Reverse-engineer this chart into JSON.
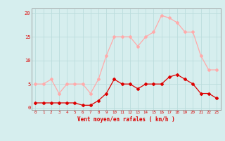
{
  "x": [
    0,
    1,
    2,
    3,
    4,
    5,
    6,
    7,
    8,
    9,
    10,
    11,
    12,
    13,
    14,
    15,
    16,
    17,
    18,
    19,
    20,
    21,
    22,
    23
  ],
  "wind_avg": [
    1,
    1,
    1,
    1,
    1,
    1,
    0.5,
    0.5,
    1.5,
    3,
    6,
    5,
    5,
    4,
    5,
    5,
    5,
    6.5,
    7,
    6,
    5,
    3,
    3,
    2
  ],
  "wind_gust": [
    5,
    5,
    6,
    3,
    5,
    5,
    5,
    3,
    6,
    11,
    15,
    15,
    15,
    13,
    15,
    16,
    19.5,
    19,
    18,
    16,
    16,
    11,
    8,
    8
  ],
  "avg_color": "#dd0000",
  "gust_color": "#ffaaaa",
  "bg_color": "#d6eeee",
  "grid_color": "#bbdddd",
  "xlabel": "Vent moyen/en rafales ( km/h )",
  "ylabel_ticks": [
    0,
    5,
    10,
    15,
    20
  ],
  "xlim": [
    -0.5,
    23.5
  ],
  "ylim": [
    -0.5,
    21
  ],
  "marker": "D",
  "marker_size": 2,
  "line_width": 0.9
}
